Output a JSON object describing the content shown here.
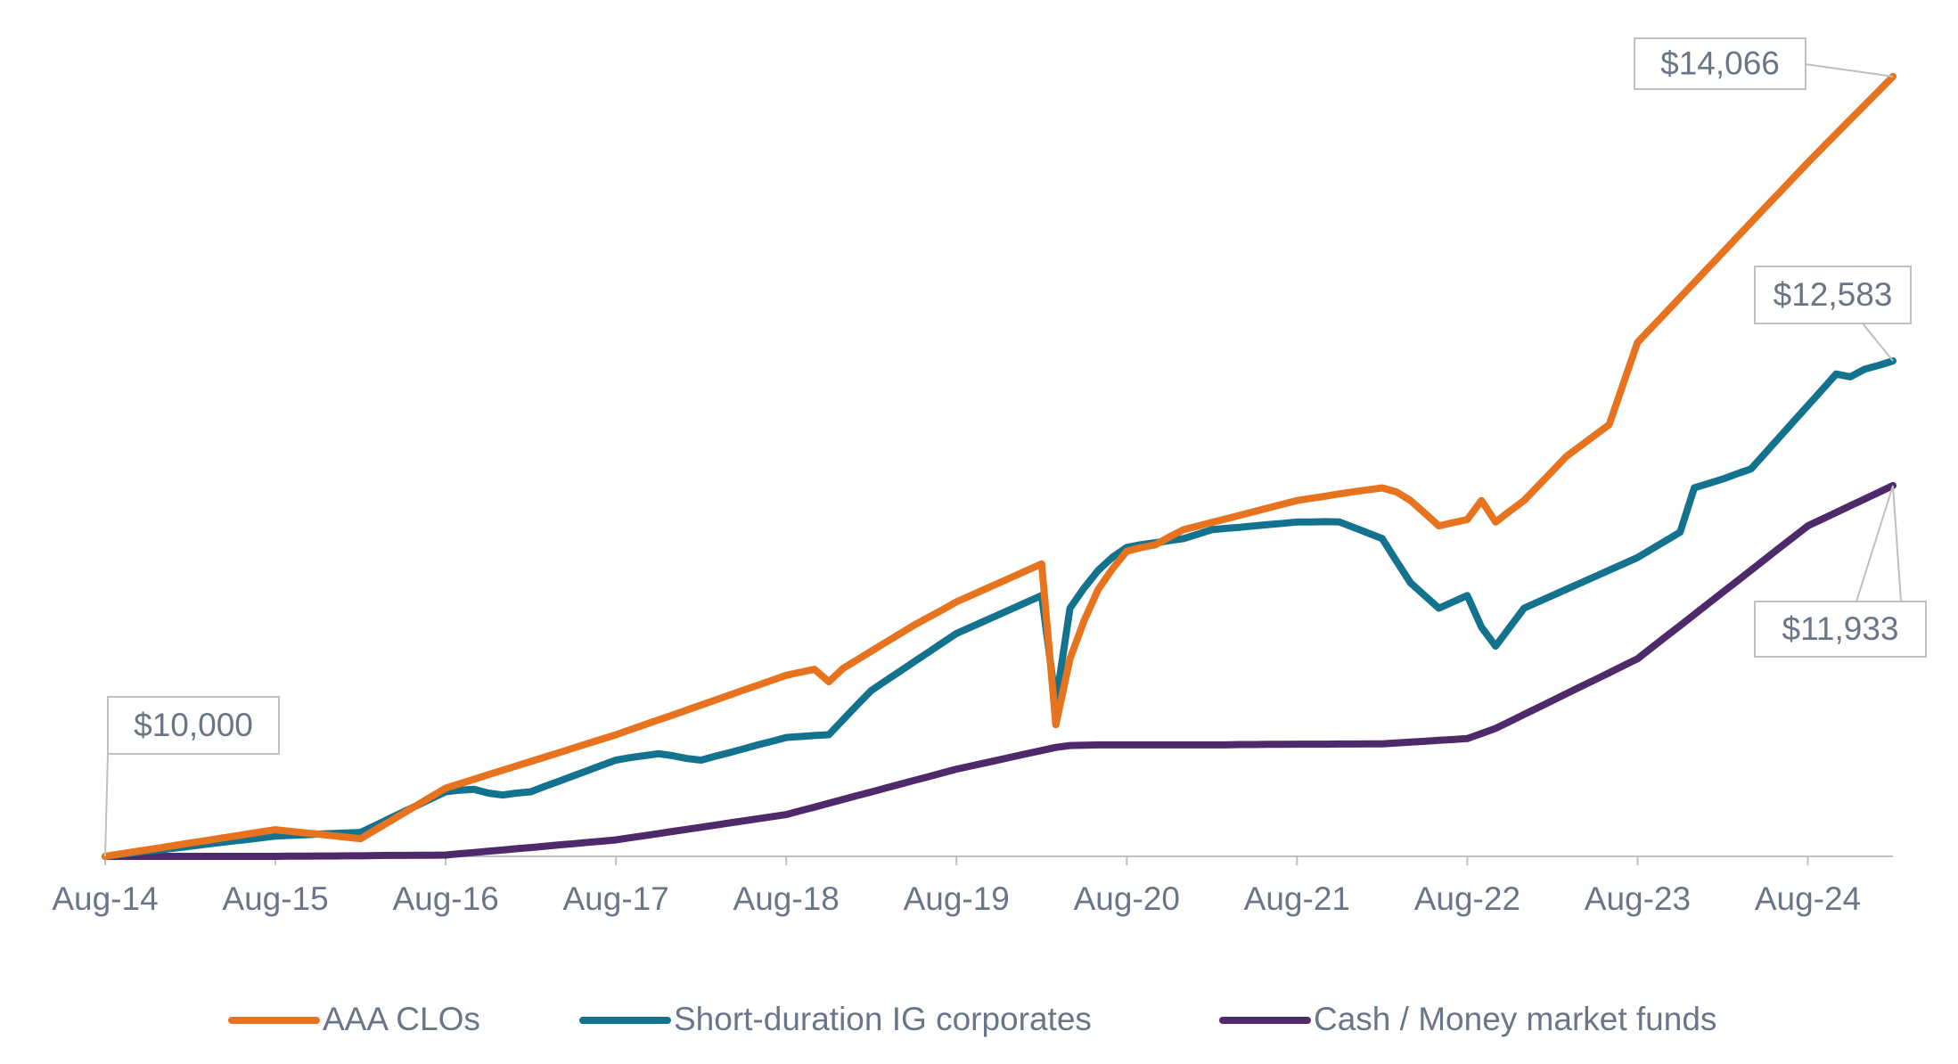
{
  "chart_data": {
    "type": "line",
    "x": [
      "Aug-14",
      "Sep-14",
      "Oct-14",
      "Nov-14",
      "Dec-14",
      "Jan-15",
      "Feb-15",
      "Mar-15",
      "Apr-15",
      "May-15",
      "Jun-15",
      "Jul-15",
      "Aug-15",
      "Sep-15",
      "Oct-15",
      "Nov-15",
      "Dec-15",
      "Jan-16",
      "Feb-16",
      "Mar-16",
      "Apr-16",
      "May-16",
      "Jun-16",
      "Jul-16",
      "Aug-16",
      "Sep-16",
      "Oct-16",
      "Nov-16",
      "Dec-16",
      "Jan-17",
      "Feb-17",
      "Mar-17",
      "Apr-17",
      "May-17",
      "Jun-17",
      "Jul-17",
      "Aug-17",
      "Sep-17",
      "Oct-17",
      "Nov-17",
      "Dec-17",
      "Jan-18",
      "Feb-18",
      "Mar-18",
      "Apr-18",
      "May-18",
      "Jun-18",
      "Jul-18",
      "Aug-18",
      "Sep-18",
      "Oct-18",
      "Nov-18",
      "Dec-18",
      "Jan-19",
      "Feb-19",
      "Mar-19",
      "Apr-19",
      "May-19",
      "Jun-19",
      "Jul-19",
      "Aug-19",
      "Sep-19",
      "Oct-19",
      "Nov-19",
      "Dec-19",
      "Jan-20",
      "Feb-20",
      "Mar-20",
      "Apr-20",
      "May-20",
      "Jun-20",
      "Jul-20",
      "Aug-20",
      "Sep-20",
      "Oct-20",
      "Nov-20",
      "Dec-20",
      "Jan-21",
      "Feb-21",
      "Mar-21",
      "Apr-21",
      "May-21",
      "Jun-21",
      "Jul-21",
      "Aug-21",
      "Sep-21",
      "Oct-21",
      "Nov-21",
      "Dec-21",
      "Jan-22",
      "Feb-22",
      "Mar-22",
      "Apr-22",
      "May-22",
      "Jun-22",
      "Jul-22",
      "Aug-22",
      "Sep-22",
      "Oct-22",
      "Nov-22",
      "Dec-22",
      "Jan-23",
      "Feb-23",
      "Mar-23",
      "Apr-23",
      "May-23",
      "Jun-23",
      "Jul-23",
      "Aug-23",
      "Sep-23",
      "Oct-23",
      "Nov-23",
      "Dec-23",
      "Jan-24",
      "Feb-24",
      "Mar-24",
      "Apr-24",
      "May-24",
      "Jun-24",
      "Jul-24",
      "Aug-24",
      "Sep-24",
      "Oct-24",
      "Nov-24",
      "Dec-24",
      "Jan-25",
      "Feb-25"
    ],
    "xticks": [
      "Aug-14",
      "Aug-15",
      "Aug-16",
      "Aug-17",
      "Aug-18",
      "Aug-19",
      "Aug-20",
      "Aug-21",
      "Aug-22",
      "Aug-23",
      "Aug-24"
    ],
    "ylim": [
      10000,
      14200
    ],
    "series": [
      {
        "name": "AAA CLOs",
        "color": "#e8731e",
        "values": [
          10000,
          10012,
          10023,
          10035,
          10046,
          10058,
          10070,
          10081,
          10093,
          10104,
          10116,
          10128,
          10139,
          10131,
          10123,
          10116,
          10108,
          10100,
          10092,
          10136,
          10180,
          10224,
          10268,
          10312,
          10356,
          10379,
          10402,
          10426,
          10449,
          10472,
          10495,
          10518,
          10541,
          10565,
          10588,
          10611,
          10634,
          10660,
          10686,
          10712,
          10737,
          10763,
          10789,
          10815,
          10841,
          10867,
          10892,
          10918,
          10944,
          10960,
          10975,
          10910,
          10980,
          11025,
          11070,
          11115,
          11160,
          11205,
          11245,
          11285,
          11327,
          11360,
          11393,
          11426,
          11459,
          11492,
          11525,
          10686,
          11030,
          11230,
          11393,
          11500,
          11591,
          11610,
          11624,
          11665,
          11703,
          11722,
          11741,
          11760,
          11779,
          11798,
          11817,
          11836,
          11855,
          11867,
          11878,
          11890,
          11901,
          11911,
          11921,
          11900,
          11855,
          11790,
          11723,
          11740,
          11756,
          11855,
          11743,
          11800,
          11855,
          11932,
          12009,
          12086,
          12141,
          12196,
          12251,
          12465,
          12680,
          12758,
          12836,
          12914,
          12992,
          13070,
          13148,
          13227,
          13305,
          13383,
          13461,
          13539,
          13617,
          13692,
          13767,
          13842,
          13916,
          13991,
          14066
        ]
      },
      {
        "name": "Short-duration IG corporates",
        "color": "#13738f",
        "values": [
          10000,
          10009,
          10018,
          10027,
          10035,
          10044,
          10053,
          10062,
          10071,
          10080,
          10088,
          10097,
          10106,
          10109,
          10112,
          10116,
          10119,
          10122,
          10125,
          10160,
          10196,
          10231,
          10266,
          10302,
          10337,
          10345,
          10350,
          10330,
          10320,
          10330,
          10337,
          10365,
          10392,
          10420,
          10447,
          10475,
          10502,
          10515,
          10525,
          10535,
          10525,
          10510,
          10502,
          10522,
          10541,
          10561,
          10581,
          10600,
          10620,
          10625,
          10630,
          10634,
          10712,
          10790,
          10865,
          10915,
          10964,
          11014,
          11063,
          11113,
          11162,
          11195,
          11228,
          11261,
          11294,
          11327,
          11360,
          10799,
          11294,
          11400,
          11492,
          11560,
          11611,
          11625,
          11635,
          11646,
          11657,
          11680,
          11703,
          11710,
          11716,
          11723,
          11730,
          11736,
          11743,
          11743,
          11745,
          11743,
          11715,
          11686,
          11657,
          11540,
          11426,
          11360,
          11294,
          11327,
          11360,
          11195,
          11096,
          11195,
          11294,
          11327,
          11360,
          11393,
          11426,
          11459,
          11492,
          11525,
          11558,
          11602,
          11646,
          11690,
          11921,
          11944,
          11967,
          11994,
          12020,
          12103,
          12185,
          12268,
          12350,
          12432,
          12515,
          12500,
          12540,
          12560,
          12583
        ]
      },
      {
        "name": "Cash / Money market funds",
        "color": "#4e2a6b",
        "values": [
          10000,
          10000,
          10000,
          10000,
          10000,
          10000,
          10000,
          10000,
          10000,
          10000,
          10000,
          10000,
          10000,
          10001,
          10001,
          10002,
          10002,
          10003,
          10003,
          10004,
          10005,
          10005,
          10006,
          10006,
          10007,
          10014,
          10020,
          10027,
          10033,
          10040,
          10046,
          10053,
          10060,
          10066,
          10073,
          10079,
          10086,
          10097,
          10108,
          10119,
          10130,
          10141,
          10152,
          10163,
          10174,
          10185,
          10196,
          10207,
          10218,
          10238,
          10257,
          10277,
          10297,
          10317,
          10336,
          10356,
          10376,
          10396,
          10415,
          10435,
          10455,
          10471,
          10487,
          10503,
          10520,
          10536,
          10552,
          10568,
          10578,
          10580,
          10581,
          10581,
          10581,
          10581,
          10581,
          10581,
          10581,
          10581,
          10581,
          10581,
          10583,
          10583,
          10584,
          10584,
          10585,
          10585,
          10585,
          10586,
          10586,
          10587,
          10587,
          10591,
          10596,
          10600,
          10605,
          10609,
          10614,
          10640,
          10667,
          10703,
          10740,
          10776,
          10812,
          10849,
          10885,
          10921,
          10957,
          10994,
          11030,
          11088,
          11146,
          11203,
          11261,
          11319,
          11377,
          11434,
          11492,
          11550,
          11608,
          11665,
          11723,
          11758,
          11793,
          11828,
          11863,
          11898,
          11933
        ]
      }
    ],
    "annotations": [
      "$10,000",
      "$14,066",
      "$12,583",
      "$11,933"
    ]
  }
}
